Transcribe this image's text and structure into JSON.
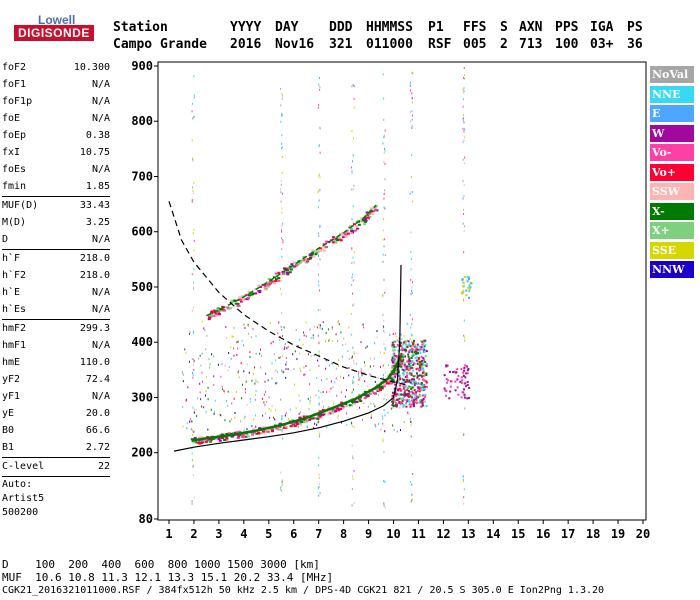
{
  "logo": {
    "top": "Lowell",
    "main": "DIGISONDE"
  },
  "header": {
    "labels": [
      "Station",
      "YYYY",
      "DAY",
      "DDD",
      "HHMMSS",
      "P1",
      "FFS",
      "S",
      "AXN",
      "PPS",
      "IGA",
      "PS"
    ],
    "values": [
      "Campo Grande",
      "2016",
      "Nov16",
      "321",
      "011000",
      "RSF",
      "005",
      "2",
      "713",
      "100",
      "03+",
      "36"
    ]
  },
  "params": [
    {
      "label": "foF2",
      "value": "10.300"
    },
    {
      "label": "foF1",
      "value": "N/A"
    },
    {
      "label": "foF1p",
      "value": "N/A"
    },
    {
      "label": "foE",
      "value": "N/A"
    },
    {
      "label": "foEp",
      "value": "0.38"
    },
    {
      "label": "fxI",
      "value": "10.75"
    },
    {
      "label": "foEs",
      "value": "N/A"
    },
    {
      "label": "fmin",
      "value": "1.85"
    },
    {
      "sep": true
    },
    {
      "label": "MUF(D)",
      "value": "33.43"
    },
    {
      "label": "M(D)",
      "value": "3.25"
    },
    {
      "label": "D",
      "value": "N/A"
    },
    {
      "sep": true
    },
    {
      "label": "h`F",
      "value": "218.0"
    },
    {
      "label": "h`F2",
      "value": "218.0"
    },
    {
      "label": "h`E",
      "value": "N/A"
    },
    {
      "label": "h`Es",
      "value": "N/A"
    },
    {
      "sep": true
    },
    {
      "label": "hmF2",
      "value": "299.3"
    },
    {
      "label": "hmF1",
      "value": "N/A"
    },
    {
      "label": "hmE",
      "value": "110.0"
    },
    {
      "label": "yF2",
      "value": "72.4"
    },
    {
      "label": "yF1",
      "value": "N/A"
    },
    {
      "label": "yE",
      "value": "20.0"
    },
    {
      "label": "B0",
      "value": "66.6"
    },
    {
      "label": "B1",
      "value": "2.72"
    },
    {
      "sep": true
    },
    {
      "label": "C-level",
      "value": "22"
    },
    {
      "sep": true
    },
    {
      "plain": "Auto:"
    },
    {
      "plain": "Artist5"
    },
    {
      "plain": "500200"
    }
  ],
  "legend": [
    {
      "label": "NoVal",
      "color": "#a6a6a6"
    },
    {
      "label": "NNE",
      "color": "#39d8f5"
    },
    {
      "label": "E",
      "color": "#4da6ff"
    },
    {
      "label": "W",
      "color": "#a0089e"
    },
    {
      "label": "Vo-",
      "color": "#ff3fa6"
    },
    {
      "label": "Vo+",
      "color": "#ff0033"
    },
    {
      "label": "SSW",
      "color": "#ffb3b3"
    },
    {
      "label": "X-",
      "color": "#007a00"
    },
    {
      "label": "X+",
      "color": "#7ed07e"
    },
    {
      "label": "SSE",
      "color": "#d6d600"
    },
    {
      "label": "NNW",
      "color": "#1a00c8"
    }
  ],
  "footer": {
    "dist_label": "D",
    "dist_values": "100  200  400  600  800 1000 1500 3000 [km]",
    "muf_label": "MUF",
    "muf_values": "10.6 10.8 11.3 12.1 13.3 15.1 20.2 33.4 [MHz]",
    "file_line": "CGK21_2016321011000.RSF / 384fx512h 50 kHz 2.5 km / DPS-4D CGK21 821 / 20.5 S 305.0 E Ion2Png 1.3.20"
  },
  "chart_data": {
    "type": "scatter",
    "xlim": [
      1,
      20
    ],
    "ylim": [
      80,
      900
    ],
    "x_ticks": [
      1,
      2,
      3,
      4,
      5,
      6,
      7,
      8,
      9,
      10,
      11,
      12,
      13,
      14,
      15,
      16,
      17,
      18,
      19,
      20
    ],
    "y_ticks": [
      80,
      200,
      300,
      400,
      500,
      600,
      700,
      800,
      900
    ],
    "grid": false,
    "o_trace": [
      [
        1.9,
        222
      ],
      [
        2.5,
        226
      ],
      [
        3.5,
        232
      ],
      [
        4.5,
        240
      ],
      [
        5.5,
        250
      ],
      [
        6.5,
        263
      ],
      [
        7.5,
        280
      ],
      [
        8.5,
        298
      ],
      [
        9.3,
        318
      ],
      [
        9.8,
        335
      ],
      [
        10.05,
        352
      ],
      [
        10.3,
        375
      ]
    ],
    "x_trace": [
      [
        2.5,
        448
      ],
      [
        3.0,
        458
      ],
      [
        4.0,
        482
      ],
      [
        5.0,
        510
      ],
      [
        6.0,
        540
      ],
      [
        7.0,
        570
      ],
      [
        8.0,
        598
      ],
      [
        8.8,
        625
      ],
      [
        9.3,
        648
      ]
    ],
    "true_height_profile": [
      [
        1.2,
        203
      ],
      [
        2.0,
        210
      ],
      [
        3.0,
        217
      ],
      [
        4.0,
        223
      ],
      [
        5.0,
        229
      ],
      [
        6.0,
        236
      ],
      [
        7.0,
        245
      ],
      [
        8.0,
        257
      ],
      [
        9.0,
        272
      ],
      [
        9.6,
        285
      ],
      [
        10.0,
        300
      ],
      [
        10.15,
        330
      ],
      [
        10.25,
        400
      ],
      [
        10.3,
        540
      ]
    ],
    "muf_curve": [
      [
        1.0,
        655
      ],
      [
        1.5,
        585
      ],
      [
        2.0,
        545
      ],
      [
        3.0,
        490
      ],
      [
        4.0,
        450
      ],
      [
        5.0,
        420
      ],
      [
        6.0,
        395
      ],
      [
        7.0,
        375
      ],
      [
        8.0,
        355
      ],
      [
        9.0,
        340
      ],
      [
        10.0,
        328
      ],
      [
        10.6,
        322
      ]
    ]
  }
}
